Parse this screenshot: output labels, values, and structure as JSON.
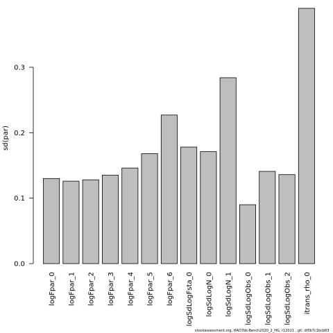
{
  "chart_data": {
    "type": "bar",
    "categories": [
      "logFpar_0",
      "logFpar_1",
      "logFpar_2",
      "logFpar_3",
      "logFpar_4",
      "logFpar_5",
      "logFpar_6",
      "logSdLogFsta_0",
      "logSdLogN_0",
      "logSdLogN_1",
      "logSdLogObs_0",
      "logSdLogObs_1",
      "logSdLogObs_2",
      "itrans_rho_0"
    ],
    "values": [
      0.13,
      0.126,
      0.128,
      0.135,
      0.146,
      0.168,
      0.227,
      0.178,
      0.171,
      0.284,
      0.09,
      0.141,
      0.136,
      0.39
    ],
    "ylabel": "sd(par)",
    "xlabel": "",
    "title": "",
    "yticks": [
      "0.0",
      "0.1",
      "0.2",
      "0.3"
    ],
    "ytick_values": [
      0.0,
      0.1,
      0.2,
      0.3
    ],
    "ylim": [
      0,
      0.39
    ],
    "bar_color": "#bebebe",
    "grid": false
  },
  "footer": "stockassessment.org, HAD7bk-Bench2020_2_HG, r12021 , git: df0b7c1bcb83"
}
